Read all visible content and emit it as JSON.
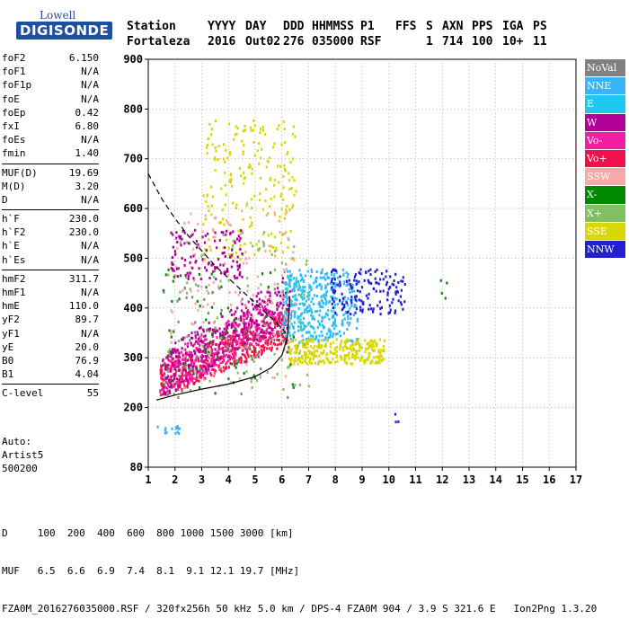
{
  "logo": {
    "line1": "Lowell",
    "line2": "DIGISONDE"
  },
  "header": {
    "labels": [
      "Station",
      "YYYY",
      "DAY",
      "DDD",
      "HHMMSS",
      "P1",
      "FFS",
      "S",
      "AXN",
      "PPS",
      "IGA",
      "PS"
    ],
    "values": [
      "Fortaleza",
      "2016",
      "Out02",
      "276",
      "035000",
      "RSF",
      "",
      "1",
      "714",
      "100",
      "10+",
      "11"
    ]
  },
  "params": [
    [
      {
        "label": "foF2",
        "value": "6.150"
      },
      {
        "label": "foF1",
        "value": "N/A"
      },
      {
        "label": "foF1p",
        "value": "N/A"
      },
      {
        "label": "foE",
        "value": "N/A"
      },
      {
        "label": "foEp",
        "value": "0.42"
      },
      {
        "label": "fxI",
        "value": "6.80"
      },
      {
        "label": "foEs",
        "value": "N/A"
      },
      {
        "label": "fmin",
        "value": "1.40"
      }
    ],
    [
      {
        "label": "MUF(D)",
        "value": "19.69"
      },
      {
        "label": "M(D)",
        "value": "3.20"
      },
      {
        "label": "D",
        "value": "N/A"
      }
    ],
    [
      {
        "label": "h`F",
        "value": "230.0"
      },
      {
        "label": "h`F2",
        "value": "230.0"
      },
      {
        "label": "h`E",
        "value": "N/A"
      },
      {
        "label": "h`Es",
        "value": "N/A"
      }
    ],
    [
      {
        "label": "hmF2",
        "value": "311.7"
      },
      {
        "label": "hmF1",
        "value": "N/A"
      },
      {
        "label": "hmE",
        "value": "110.0"
      },
      {
        "label": "yF2",
        "value": "89.7"
      },
      {
        "label": "yF1",
        "value": "N/A"
      },
      {
        "label": "yE",
        "value": "20.0"
      },
      {
        "label": "B0",
        "value": "76.9"
      },
      {
        "label": "B1",
        "value": "4.04"
      }
    ],
    [
      {
        "label": "C-level",
        "value": "55"
      }
    ]
  ],
  "auto": {
    "line1": "Auto:",
    "line2": "Artist5",
    "line3": "500200"
  },
  "bottom": {
    "d_row": "D     100  200  400  600  800 1000 1500 3000 [km]",
    "muf_row": "MUF   6.5  6.6  6.9  7.4  8.1  9.1 12.1 19.7 [MHz]",
    "footer": "FZA0M_2016276035000.RSF / 320fx256h 50 kHz 5.0 km / DPS-4 FZA0M 904 / 3.9 S 321.6 E   Ion2Png 1.3.20"
  },
  "legend": [
    {
      "label": "NoVal",
      "color": "#808080"
    },
    {
      "label": "NNE",
      "color": "#38b4f8"
    },
    {
      "label": "E",
      "color": "#1ec8f0"
    },
    {
      "label": "W",
      "color": "#b00098"
    },
    {
      "label": "Vo-",
      "color": "#f020a0"
    },
    {
      "label": "Vo+",
      "color": "#f0104c"
    },
    {
      "label": "SSW",
      "color": "#f8a8a8"
    },
    {
      "label": "X-",
      "color": "#008800"
    },
    {
      "label": "X+",
      "color": "#80c060"
    },
    {
      "label": "SSE",
      "color": "#d8d800"
    },
    {
      "label": "NNW",
      "color": "#2020d0"
    }
  ],
  "chart_data": {
    "type": "scatter",
    "title": "",
    "xlabel": "",
    "ylabel": "",
    "xlim": [
      1,
      17
    ],
    "ylim": [
      80,
      900
    ],
    "x_ticks": [
      "1",
      "2",
      "3",
      "4",
      "5",
      "6",
      "7",
      "8",
      "9",
      "10",
      "11",
      "12",
      "13",
      "14",
      "15",
      "16",
      "17"
    ],
    "y_ticks": [
      {
        "v": 80,
        "label": "80"
      },
      {
        "v": 200,
        "label": "200"
      },
      {
        "v": 300,
        "label": "300"
      },
      {
        "v": 400,
        "label": "400"
      },
      {
        "v": 500,
        "label": "500"
      },
      {
        "v": 600,
        "label": "600"
      },
      {
        "v": 700,
        "label": "700"
      },
      {
        "v": 800,
        "label": "800"
      },
      {
        "v": 900,
        "label": "900"
      }
    ],
    "grid": "dotted",
    "legend_position": "right",
    "clusters": [
      {
        "series": "Vo+",
        "x": [
          1.4,
          6.2
        ],
        "y": [
          220,
          420
        ],
        "n": 500,
        "trend": true
      },
      {
        "series": "Vo-",
        "x": [
          1.4,
          6.0
        ],
        "y": [
          220,
          460
        ],
        "n": 380,
        "trend": true
      },
      {
        "series": "W",
        "x": [
          1.5,
          6.3
        ],
        "y": [
          220,
          500
        ],
        "n": 320,
        "trend": true
      },
      {
        "series": "NNE",
        "x": [
          6.0,
          8.8
        ],
        "y": [
          330,
          480
        ],
        "n": 260
      },
      {
        "series": "E",
        "x": [
          6.0,
          8.0
        ],
        "y": [
          340,
          470
        ],
        "n": 160
      },
      {
        "series": "SSE",
        "x": [
          6.2,
          9.8
        ],
        "y": [
          290,
          340
        ],
        "n": 300
      },
      {
        "series": "SSE",
        "x": [
          3.0,
          6.5
        ],
        "y": [
          500,
          780
        ],
        "n": 220
      },
      {
        "series": "NNW",
        "x": [
          7.8,
          10.6
        ],
        "y": [
          390,
          480
        ],
        "n": 150
      },
      {
        "series": "X+",
        "x": [
          1.5,
          7.0
        ],
        "y": [
          230,
          560
        ],
        "n": 120
      },
      {
        "series": "X-",
        "x": [
          1.5,
          6.5
        ],
        "y": [
          230,
          480
        ],
        "n": 60
      },
      {
        "series": "SSW",
        "x": [
          1.8,
          6.5
        ],
        "y": [
          240,
          600
        ],
        "n": 140
      },
      {
        "series": "W",
        "x": [
          1.8,
          4.5
        ],
        "y": [
          460,
          560
        ],
        "n": 120
      },
      {
        "series": "NoVal",
        "x": [
          1.5,
          6.5
        ],
        "y": [
          220,
          450
        ],
        "n": 40
      },
      {
        "series": "NNE",
        "x": [
          1.2,
          2.2
        ],
        "y": [
          150,
          165
        ],
        "n": 15
      },
      {
        "series": "X-",
        "x": [
          11.2,
          12.5
        ],
        "y": [
          420,
          460
        ],
        "n": 4
      },
      {
        "series": "NNW",
        "x": [
          10.2,
          10.4
        ],
        "y": [
          160,
          190
        ],
        "n": 3
      }
    ],
    "profile_line": {
      "x": [
        1.3,
        2.0,
        3.0,
        4.0,
        5.0,
        5.6,
        6.0,
        6.2,
        6.3
      ],
      "y": [
        215,
        225,
        237,
        247,
        262,
        280,
        305,
        340,
        420
      ]
    },
    "muf_curve": {
      "x": [
        1.0,
        1.5,
        2.0,
        2.5,
        3.0,
        3.5,
        4.0,
        4.5,
        5.0,
        5.5,
        6.0,
        6.2
      ],
      "y": [
        670,
        620,
        580,
        545,
        515,
        485,
        460,
        435,
        410,
        385,
        360,
        345
      ]
    }
  }
}
